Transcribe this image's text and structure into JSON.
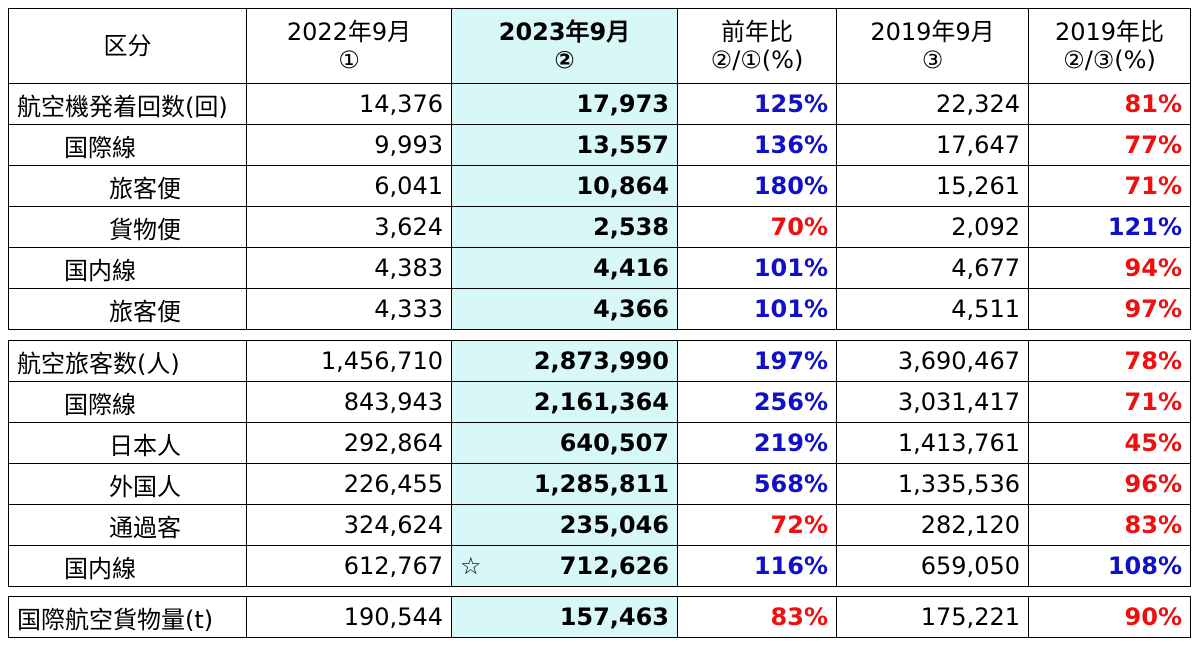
{
  "header": {
    "category": "区分",
    "col1": [
      "2022年9月",
      "①"
    ],
    "col2": [
      "2023年9月",
      "②"
    ],
    "col3": [
      "前年比",
      "②/①(%)"
    ],
    "col4": [
      "2019年9月",
      "③"
    ],
    "col5": [
      "2019年比",
      "②/③(%)"
    ]
  },
  "flights": [
    {
      "label": "航空機発着回数(回)",
      "indent": 0,
      "v1": "14,376",
      "v2": "17,973",
      "r1": "125%",
      "r1c": "blue",
      "v3": "22,324",
      "r2": "81%",
      "r2c": "red"
    },
    {
      "label": "国際線",
      "indent": 1,
      "v1": "9,993",
      "v2": "13,557",
      "r1": "136%",
      "r1c": "blue",
      "v3": "17,647",
      "r2": "77%",
      "r2c": "red"
    },
    {
      "label": "旅客便",
      "indent": 2,
      "v1": "6,041",
      "v2": "10,864",
      "r1": "180%",
      "r1c": "blue",
      "v3": "15,261",
      "r2": "71%",
      "r2c": "red"
    },
    {
      "label": "貨物便",
      "indent": 2,
      "v1": "3,624",
      "v2": "2,538",
      "r1": "70%",
      "r1c": "red",
      "v3": "2,092",
      "r2": "121%",
      "r2c": "blue"
    },
    {
      "label": "国内線",
      "indent": 1,
      "v1": "4,383",
      "v2": "4,416",
      "r1": "101%",
      "r1c": "blue",
      "v3": "4,677",
      "r2": "94%",
      "r2c": "red"
    },
    {
      "label": "旅客便",
      "indent": 2,
      "v1": "4,333",
      "v2": "4,366",
      "r1": "101%",
      "r1c": "blue",
      "v3": "4,511",
      "r2": "97%",
      "r2c": "red"
    }
  ],
  "passengers": [
    {
      "label": "航空旅客数(人)",
      "indent": 0,
      "v1": "1,456,710",
      "v2": "2,873,990",
      "r1": "197%",
      "r1c": "blue",
      "v3": "3,690,467",
      "r2": "78%",
      "r2c": "red"
    },
    {
      "label": "国際線",
      "indent": 1,
      "v1": "843,943",
      "v2": "2,161,364",
      "r1": "256%",
      "r1c": "blue",
      "v3": "3,031,417",
      "r2": "71%",
      "r2c": "red"
    },
    {
      "label": "日本人",
      "indent": 2,
      "v1": "292,864",
      "v2": "640,507",
      "r1": "219%",
      "r1c": "blue",
      "v3": "1,413,761",
      "r2": "45%",
      "r2c": "red"
    },
    {
      "label": "外国人",
      "indent": 2,
      "v1": "226,455",
      "v2": "1,285,811",
      "r1": "568%",
      "r1c": "blue",
      "v3": "1,335,536",
      "r2": "96%",
      "r2c": "red"
    },
    {
      "label": "通過客",
      "indent": 2,
      "v1": "324,624",
      "v2": "235,046",
      "r1": "72%",
      "r1c": "red",
      "v3": "282,120",
      "r2": "83%",
      "r2c": "red"
    },
    {
      "label": "国内線",
      "indent": 1,
      "v1": "612,767",
      "v2": "712,626",
      "star": "☆",
      "r1": "116%",
      "r1c": "blue",
      "v3": "659,050",
      "r2": "108%",
      "r2c": "blue"
    }
  ],
  "cargo": [
    {
      "label": "国際航空貨物量(t)",
      "indent": 0,
      "v1": "190,544",
      "v2": "157,463",
      "r1": "83%",
      "r1c": "red",
      "v3": "175,221",
      "r2": "90%",
      "r2c": "red"
    }
  ],
  "colors": {
    "highlight": "#d8f8f8",
    "blue": "#1010c8",
    "red": "#ee1010"
  }
}
